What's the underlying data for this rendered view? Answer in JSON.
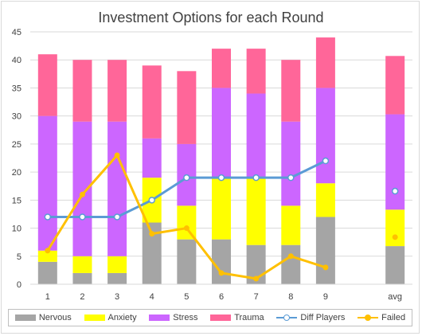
{
  "chart_data": {
    "type": "bar",
    "stacked": true,
    "title": "Investment Options for each Round",
    "categories": [
      "1",
      "2",
      "3",
      "4",
      "5",
      "6",
      "7",
      "8",
      "9",
      "",
      "avg"
    ],
    "ylim": [
      0,
      45
    ],
    "yticks": [
      0,
      5,
      10,
      15,
      20,
      25,
      30,
      35,
      40,
      45
    ],
    "grid": true,
    "legend_position": "bottom",
    "series": [
      {
        "name": "Nervous",
        "kind": "bar",
        "color": "#a5a5a5",
        "values": [
          4,
          2,
          2,
          11,
          8,
          8,
          7,
          7,
          12,
          null,
          6.8
        ]
      },
      {
        "name": "Anxiety",
        "kind": "bar",
        "color": "#ffff00",
        "values": [
          2,
          3,
          3,
          8,
          6,
          11,
          12,
          7,
          6,
          null,
          6.5
        ]
      },
      {
        "name": "Stress",
        "kind": "bar",
        "color": "#cc66ff",
        "values": [
          24,
          24,
          24,
          7,
          11,
          16,
          15,
          15,
          17,
          null,
          17
        ]
      },
      {
        "name": "Trauma",
        "kind": "bar",
        "color": "#ff6699",
        "values": [
          11,
          11,
          11,
          13,
          13,
          7,
          8,
          11,
          9,
          null,
          10.4
        ]
      },
      {
        "name": "Diff Players",
        "kind": "line",
        "color": "#5b9bd5",
        "values": [
          12,
          12,
          12,
          15,
          19,
          19,
          19,
          19,
          22,
          null,
          16.6
        ],
        "avg_separate": true
      },
      {
        "name": "Failed",
        "kind": "line",
        "color": "#ffc000",
        "values": [
          6,
          16,
          23,
          9,
          10,
          2,
          1,
          5,
          3,
          null,
          8.4
        ],
        "avg_separate": true
      }
    ]
  }
}
